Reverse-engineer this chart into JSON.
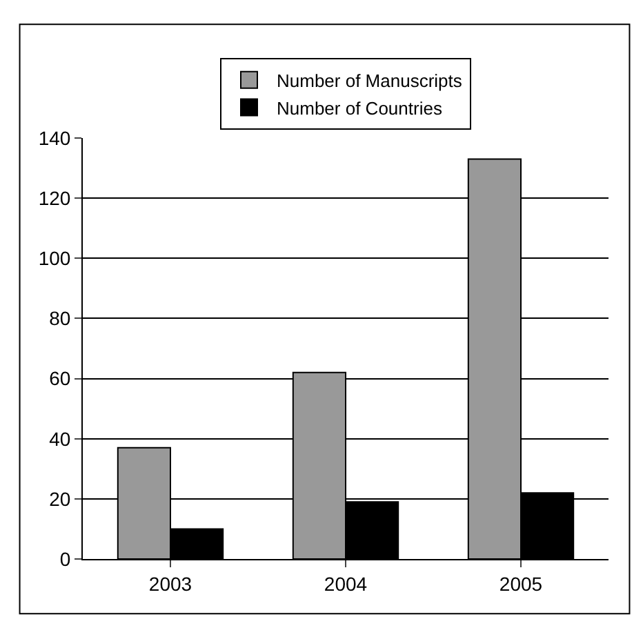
{
  "chart_data": {
    "type": "bar",
    "categories": [
      "2003",
      "2004",
      "2005"
    ],
    "series": [
      {
        "name": "Number of Manuscripts",
        "color": "#999999",
        "values": [
          37,
          62,
          133
        ]
      },
      {
        "name": "Number of Countries",
        "color": "#000000",
        "values": [
          10,
          19,
          22
        ]
      }
    ],
    "ylim": [
      0,
      140
    ],
    "yticks": [
      0,
      20,
      40,
      60,
      80,
      100,
      120,
      140
    ],
    "grid": "y",
    "legend": "top"
  }
}
